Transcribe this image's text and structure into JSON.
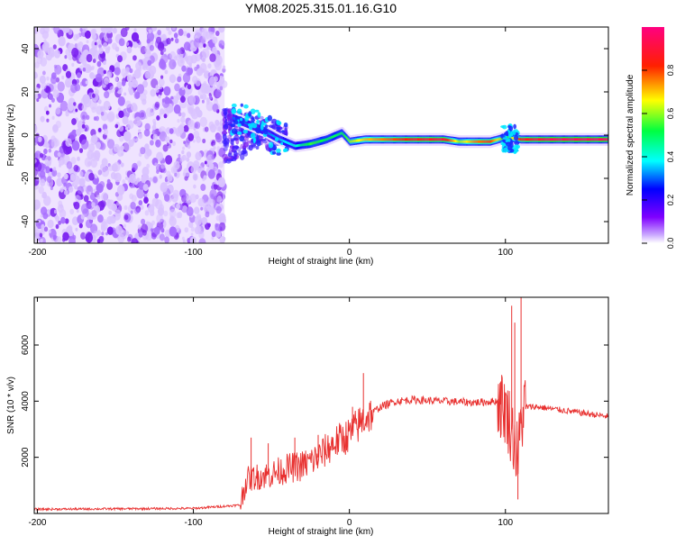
{
  "page": {
    "title": "YM08.2025.315.01.16.G10"
  },
  "chart_data": [
    {
      "type": "heatmap",
      "title": "YM08.2025.315.01.16.G10",
      "xlabel": "Height of straight line (km)",
      "ylabel": "Frequency (Hz)",
      "xlim": [
        -202,
        166
      ],
      "ylim": [
        -50,
        50
      ],
      "xticks": [
        -200,
        -100,
        0,
        100
      ],
      "yticks": [
        -40,
        -20,
        0,
        20,
        40
      ],
      "grid": false,
      "colorbar": {
        "label": "Normalized spectral amplitude",
        "range": [
          0,
          1
        ],
        "ticks": [
          0.0,
          0.2,
          0.4,
          0.6,
          0.8
        ],
        "colormap": [
          "#ffffff",
          "#8000ff",
          "#0000ff",
          "#00ffff",
          "#00ff00",
          "#ffff00",
          "#ff0000",
          "#ff0080"
        ]
      },
      "noise_region_km": [
        -202,
        -80
      ],
      "transition_region_km": [
        -80,
        -40
      ],
      "signal_trace": {
        "x_km": [
          -75,
          -65,
          -55,
          -45,
          -35,
          -25,
          -15,
          -5,
          0,
          10,
          20,
          40,
          60,
          70,
          80,
          90,
          100,
          110,
          130,
          166
        ],
        "freq_hz": [
          8,
          5,
          2,
          -2,
          -5,
          -4,
          -2,
          1,
          -3,
          -2,
          -2,
          -2,
          -2,
          -3,
          -3,
          -3,
          -1,
          -2,
          -2,
          -2
        ],
        "amplitude": [
          0.3,
          0.3,
          0.3,
          0.35,
          0.4,
          0.55,
          0.5,
          0.5,
          0.6,
          0.7,
          0.75,
          0.85,
          0.9,
          0.6,
          0.75,
          0.8,
          0.5,
          0.85,
          0.95,
          0.95
        ]
      }
    },
    {
      "type": "line",
      "xlabel": "Height of straight line (km)",
      "ylabel": "SNR (10 * v/v)",
      "xlim": [
        -202,
        166
      ],
      "ylim": [
        0,
        7700
      ],
      "xticks": [
        -200,
        -100,
        0,
        100
      ],
      "yticks": [
        2000,
        4000,
        6000
      ],
      "grid": false,
      "series": [
        {
          "name": "SNR",
          "color": "#e8302f",
          "envelope": {
            "x": [
              -202,
              -100,
              -70,
              -66,
              -60,
              -50,
              -40,
              -30,
              -20,
              -10,
              0,
              10,
              20,
              30,
              40,
              60,
              80,
              95,
              100,
              104,
              106,
              108,
              110,
              112,
              120,
              140,
              166
            ],
            "y": [
              150,
              180,
              300,
              1200,
              1300,
              1400,
              1600,
              1700,
              2000,
              2500,
              2800,
              3400,
              3800,
              4000,
              4050,
              4000,
              3950,
              4000,
              3700,
              3000,
              2500,
              2000,
              3200,
              3800,
              3800,
              3650,
              3450
            ]
          },
          "spikes": [
            {
              "x": -63,
              "y": 2700
            },
            {
              "x": -52,
              "y": 2500
            },
            {
              "x": -35,
              "y": 2700
            },
            {
              "x": -20,
              "y": 2800
            },
            {
              "x": 2,
              "y": 3800
            },
            {
              "x": 9,
              "y": 5000
            },
            {
              "x": 97,
              "y": 4700
            },
            {
              "x": 104,
              "y": 7400
            },
            {
              "x": 106,
              "y": 6800
            },
            {
              "x": 108,
              "y": 500
            },
            {
              "x": 110,
              "y": 7700
            }
          ]
        }
      ]
    }
  ]
}
